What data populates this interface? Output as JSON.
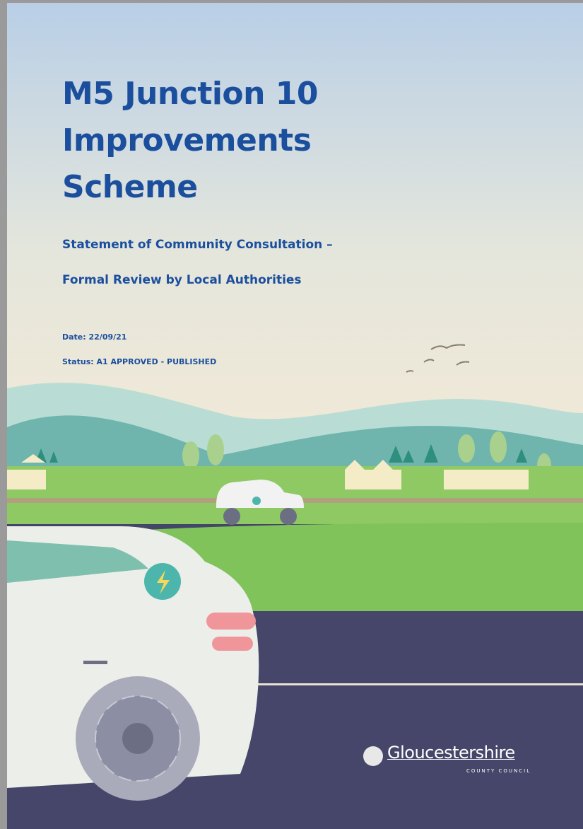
{
  "title": "M5 Junction 10 Improvements Scheme",
  "subtitle": [
    "Statement of Community Consultation –",
    "Formal Review by Local Authorities"
  ],
  "date": "Date: 22/09/21",
  "status": "Status: A1 APPROVED - PUBLISHED",
  "logo": {
    "name": "Gloucestershire",
    "tagline": "COUNTY COUNCIL"
  }
}
